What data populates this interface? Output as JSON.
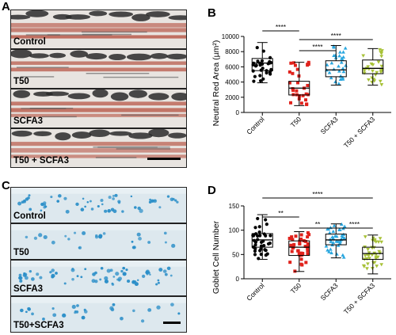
{
  "panel_letters": {
    "a": "A",
    "b": "B",
    "c": "C",
    "d": "D"
  },
  "panel_a": {
    "strips": [
      {
        "label": "Control"
      },
      {
        "label": "T50"
      },
      {
        "label": "SCFA3"
      },
      {
        "label": "T50 + SCFA3"
      }
    ],
    "colors": {
      "background": "#e8e4e0",
      "stain": "#b85a4a",
      "dark": "#2a2a2a"
    }
  },
  "panel_c": {
    "strips": [
      {
        "label": "Control"
      },
      {
        "label": "T50"
      },
      {
        "label": "SCFA3"
      },
      {
        "label": "T50+SCFA3"
      }
    ],
    "colors": {
      "background": "#dde8ee",
      "stain": "#2a8ec8"
    }
  },
  "chart_data": [
    {
      "type": "box",
      "ylabel": "Neutral Red Area (µm²)",
      "ylim": [
        0,
        10000
      ],
      "yticks": [
        0,
        2000,
        4000,
        6000,
        8000,
        10000
      ],
      "categories": [
        "Control",
        "T50",
        "SCFA3",
        "T50 + SCFA3"
      ],
      "series": [
        {
          "category": "Control",
          "min": 3900,
          "q1": 5500,
          "median": 6500,
          "q3": 7100,
          "max": 9200,
          "color": "#000000"
        },
        {
          "category": "T50",
          "min": 900,
          "q1": 2300,
          "median": 3200,
          "q3": 4100,
          "max": 6600,
          "color": "#e0221c"
        },
        {
          "category": "SCFA3",
          "min": 3600,
          "q1": 4700,
          "median": 5600,
          "q3": 6800,
          "max": 8800,
          "color": "#2aa7df"
        },
        {
          "category": "T50 + SCFA3",
          "min": 3600,
          "q1": 5100,
          "median": 5800,
          "q3": 6900,
          "max": 8400,
          "color": "#a8c238"
        }
      ],
      "significance": [
        {
          "from": "Control",
          "to": "T50",
          "label": "****"
        },
        {
          "from": "T50",
          "to": "SCFA3",
          "label": "****"
        },
        {
          "from": "T50",
          "to": "T50 + SCFA3",
          "label": "****"
        }
      ]
    },
    {
      "type": "box",
      "ylabel": "Goblet Cell Number",
      "ylim": [
        0,
        150
      ],
      "yticks": [
        0,
        50,
        100,
        150
      ],
      "categories": [
        "Control",
        "T50",
        "SCFA3",
        "T50 + SCFA3"
      ],
      "series": [
        {
          "category": "Control",
          "min": 40,
          "q1": 65,
          "median": 80,
          "q3": 93,
          "max": 132,
          "color": "#000000"
        },
        {
          "category": "T50",
          "min": 15,
          "q1": 48,
          "median": 65,
          "q3": 78,
          "max": 97,
          "color": "#e0221c"
        },
        {
          "category": "SCFA3",
          "min": 43,
          "q1": 70,
          "median": 80,
          "q3": 92,
          "max": 113,
          "color": "#2aa7df"
        },
        {
          "category": "T50 + SCFA3",
          "min": 10,
          "q1": 40,
          "median": 52,
          "q3": 65,
          "max": 90,
          "color": "#a8c238"
        }
      ],
      "significance": [
        {
          "from": "Control",
          "to": "T50",
          "label": "**"
        },
        {
          "from": "Control",
          "to": "T50 + SCFA3",
          "label": "****"
        },
        {
          "from": "T50",
          "to": "SCFA3",
          "label": "**"
        },
        {
          "from": "SCFA3",
          "to": "T50 + SCFA3",
          "label": "****"
        }
      ]
    }
  ]
}
